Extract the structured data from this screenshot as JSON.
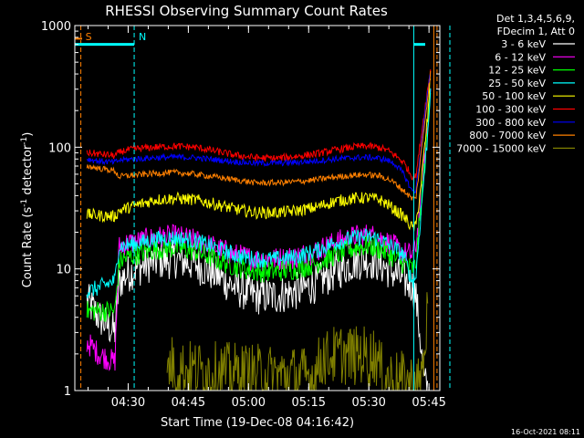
{
  "chart_data": {
    "type": "line",
    "title": "RHESSI Observing Summary Count Rates",
    "xlabel": "Start Time (19-Dec-08 04:16:42)",
    "ylabel_main": "Count Rate (s",
    "ylabel_sup1": "-1",
    "ylabel_mid": " detector",
    "ylabel_sup2": "-1",
    "ylabel_end": ")",
    "y_scale": "log",
    "ylim": [
      1,
      1000
    ],
    "xlim_minutes": [
      0,
      91
    ],
    "x_ticks": [
      {
        "label": "04:30",
        "min": 13.3
      },
      {
        "label": "04:45",
        "min": 28.3
      },
      {
        "label": "05:00",
        "min": 43.3
      },
      {
        "label": "05:15",
        "min": 58.3
      },
      {
        "label": "05:30",
        "min": 73.3
      },
      {
        "label": "05:45",
        "min": 88.3
      }
    ],
    "y_ticks": [
      {
        "label": "1",
        "value": 1
      },
      {
        "label": "10",
        "value": 10
      },
      {
        "label": "100",
        "value": 100
      },
      {
        "label": "1000",
        "value": 1000
      }
    ],
    "legend_header": [
      "Det 1,3,4,5,6,9,",
      "FDecim 1, Att 0"
    ],
    "legend_placement": "right",
    "series": [
      {
        "name": "3 - 6 keV",
        "color": "#ffffff",
        "points": [
          [
            3,
            5.5
          ],
          [
            6,
            4
          ],
          [
            10,
            3
          ],
          [
            11,
            7.5
          ],
          [
            12,
            8.5
          ],
          [
            15,
            10
          ],
          [
            20,
            11.5
          ],
          [
            25,
            12
          ],
          [
            30,
            11
          ],
          [
            35,
            9
          ],
          [
            40,
            7
          ],
          [
            45,
            6
          ],
          [
            50,
            6
          ],
          [
            55,
            6.5
          ],
          [
            60,
            7.5
          ],
          [
            65,
            9.5
          ],
          [
            70,
            11.5
          ],
          [
            73,
            12
          ],
          [
            76,
            11
          ],
          [
            78,
            10
          ],
          [
            80,
            9
          ],
          [
            82,
            8
          ],
          [
            84,
            7.5
          ],
          [
            85,
            6
          ],
          [
            86,
            3
          ],
          [
            87,
            1.2
          ],
          [
            88,
            1
          ]
        ]
      },
      {
        "name": "6 - 12 keV",
        "color": "#ff00ff",
        "points": [
          [
            3,
            2.5
          ],
          [
            6,
            2
          ],
          [
            10,
            1.7
          ],
          [
            11,
            15
          ],
          [
            12,
            16
          ],
          [
            15,
            16.5
          ],
          [
            20,
            18
          ],
          [
            25,
            18.5
          ],
          [
            30,
            17
          ],
          [
            35,
            15
          ],
          [
            40,
            13
          ],
          [
            45,
            12
          ],
          [
            50,
            12
          ],
          [
            55,
            12.5
          ],
          [
            60,
            14
          ],
          [
            65,
            16.5
          ],
          [
            70,
            18.5
          ],
          [
            73,
            19
          ],
          [
            76,
            18
          ],
          [
            78,
            16.5
          ],
          [
            80,
            15
          ],
          [
            82,
            13.5
          ],
          [
            84,
            13
          ],
          [
            85,
            15
          ],
          [
            86,
            30
          ],
          [
            87,
            70
          ],
          [
            88,
            160
          ],
          [
            88.7,
            380
          ]
        ]
      },
      {
        "name": "12 - 25 keV",
        "color": "#00ff00",
        "points": [
          [
            3,
            4.5
          ],
          [
            6,
            4.5
          ],
          [
            10,
            4.5
          ],
          [
            11,
            11
          ],
          [
            12,
            12
          ],
          [
            15,
            13
          ],
          [
            20,
            14.5
          ],
          [
            25,
            15
          ],
          [
            30,
            14
          ],
          [
            35,
            12
          ],
          [
            40,
            10.5
          ],
          [
            45,
            9.5
          ],
          [
            50,
            9.5
          ],
          [
            55,
            10
          ],
          [
            60,
            11
          ],
          [
            65,
            13
          ],
          [
            70,
            15
          ],
          [
            73,
            15.5
          ],
          [
            76,
            14.5
          ],
          [
            78,
            13.5
          ],
          [
            80,
            12
          ],
          [
            82,
            11
          ],
          [
            84,
            10
          ],
          [
            85,
            10.5
          ],
          [
            86,
            25
          ],
          [
            87,
            60
          ],
          [
            88,
            140
          ],
          [
            88.7,
            350
          ]
        ]
      },
      {
        "name": "25 - 50 keV",
        "color": "#00ffff",
        "points": [
          [
            3,
            6.5
          ],
          [
            6,
            7
          ],
          [
            10,
            8
          ],
          [
            11,
            15.5
          ],
          [
            12,
            15.5
          ],
          [
            15,
            16
          ],
          [
            20,
            17.5
          ],
          [
            25,
            18
          ],
          [
            30,
            17
          ],
          [
            35,
            15
          ],
          [
            40,
            13
          ],
          [
            45,
            12
          ],
          [
            50,
            12
          ],
          [
            55,
            12.5
          ],
          [
            60,
            14
          ],
          [
            65,
            16.5
          ],
          [
            70,
            18
          ],
          [
            73,
            18.5
          ],
          [
            76,
            17.5
          ],
          [
            78,
            16
          ],
          [
            80,
            14.5
          ],
          [
            82,
            13
          ],
          [
            84,
            8
          ],
          [
            85,
            8.5
          ],
          [
            86,
            22
          ],
          [
            87,
            55
          ],
          [
            88,
            130
          ],
          [
            88.7,
            330
          ]
        ]
      },
      {
        "name": "50 - 100 keV",
        "color": "#ffff00",
        "points": [
          [
            3,
            28
          ],
          [
            6,
            27.5
          ],
          [
            10,
            27
          ],
          [
            11,
            30
          ],
          [
            12,
            31
          ],
          [
            15,
            33
          ],
          [
            20,
            37
          ],
          [
            25,
            38
          ],
          [
            30,
            37
          ],
          [
            35,
            34
          ],
          [
            40,
            31
          ],
          [
            45,
            29
          ],
          [
            50,
            29
          ],
          [
            55,
            30
          ],
          [
            60,
            32
          ],
          [
            65,
            36
          ],
          [
            70,
            38
          ],
          [
            73,
            38.5
          ],
          [
            76,
            37
          ],
          [
            78,
            34
          ],
          [
            80,
            30
          ],
          [
            82,
            27
          ],
          [
            84,
            22
          ],
          [
            85,
            22
          ],
          [
            86,
            40
          ],
          [
            87,
            85
          ],
          [
            88,
            180
          ],
          [
            88.7,
            400
          ]
        ]
      },
      {
        "name": "100 - 300 keV",
        "color": "#ff0000",
        "points": [
          [
            3,
            90
          ],
          [
            6,
            88
          ],
          [
            10,
            85
          ],
          [
            11,
            90
          ],
          [
            12,
            93
          ],
          [
            15,
            97
          ],
          [
            20,
            100
          ],
          [
            25,
            102
          ],
          [
            30,
            100
          ],
          [
            35,
            93
          ],
          [
            40,
            86
          ],
          [
            45,
            82
          ],
          [
            50,
            81
          ],
          [
            55,
            84
          ],
          [
            60,
            88
          ],
          [
            65,
            95
          ],
          [
            70,
            101
          ],
          [
            73,
            102
          ],
          [
            76,
            99
          ],
          [
            78,
            94
          ],
          [
            80,
            85
          ],
          [
            82,
            75
          ],
          [
            84,
            58
          ],
          [
            85,
            57
          ],
          [
            86,
            100
          ],
          [
            87,
            180
          ],
          [
            88,
            300
          ],
          [
            88.7,
            440
          ]
        ]
      },
      {
        "name": "300 - 800 keV",
        "color": "#0000ff",
        "points": [
          [
            3,
            80
          ],
          [
            6,
            77
          ],
          [
            10,
            75
          ],
          [
            11,
            78
          ],
          [
            12,
            79
          ],
          [
            15,
            80
          ],
          [
            20,
            82
          ],
          [
            25,
            83
          ],
          [
            30,
            82
          ],
          [
            35,
            79
          ],
          [
            40,
            76
          ],
          [
            45,
            74
          ],
          [
            50,
            74
          ],
          [
            55,
            75
          ],
          [
            60,
            77
          ],
          [
            65,
            80
          ],
          [
            70,
            82
          ],
          [
            73,
            82.5
          ],
          [
            76,
            81
          ],
          [
            78,
            78
          ],
          [
            80,
            72
          ],
          [
            82,
            60
          ],
          [
            84,
            44
          ],
          [
            85,
            44
          ],
          [
            86,
            80
          ],
          [
            87,
            160
          ],
          [
            88,
            280
          ],
          [
            88.7,
            420
          ]
        ]
      },
      {
        "name": "800 - 7000 keV",
        "color": "#ff8000",
        "points": [
          [
            3,
            70
          ],
          [
            6,
            67
          ],
          [
            10,
            64
          ],
          [
            11,
            57
          ],
          [
            12,
            58
          ],
          [
            15,
            59
          ],
          [
            20,
            61
          ],
          [
            25,
            62
          ],
          [
            30,
            60
          ],
          [
            35,
            57
          ],
          [
            40,
            54
          ],
          [
            45,
            51
          ],
          [
            50,
            51
          ],
          [
            55,
            52
          ],
          [
            60,
            54
          ],
          [
            65,
            57
          ],
          [
            70,
            59
          ],
          [
            73,
            59.5
          ],
          [
            76,
            58
          ],
          [
            78,
            55
          ],
          [
            80,
            50
          ],
          [
            82,
            44
          ],
          [
            84,
            38
          ],
          [
            85,
            38
          ],
          [
            86,
            70
          ],
          [
            87,
            140
          ],
          [
            88,
            260
          ],
          [
            88.7,
            410
          ]
        ]
      },
      {
        "name": "7000 - 15000 keV",
        "color": "#808000",
        "points": [
          [
            23,
            1.4
          ],
          [
            24,
            1.7
          ],
          [
            25,
            1.5
          ],
          [
            59.5,
            1.3
          ],
          [
            60.5,
            1.5
          ],
          [
            62,
            2
          ],
          [
            63,
            1.8
          ],
          [
            64,
            2
          ],
          [
            65,
            1.9
          ],
          [
            66,
            2
          ],
          [
            67,
            2
          ],
          [
            68,
            1.9
          ],
          [
            69,
            2
          ],
          [
            70,
            1.9
          ],
          [
            71,
            2
          ],
          [
            72,
            2
          ],
          [
            73,
            1.8
          ],
          [
            74,
            1.9
          ],
          [
            75,
            2
          ],
          [
            76,
            1.5
          ],
          [
            77,
            1.3
          ],
          [
            86,
            1.1
          ],
          [
            87,
            1.8
          ],
          [
            88,
            5
          ]
        ]
      }
    ],
    "markers": [
      {
        "label": "S",
        "color": "#ff8000",
        "min": 1.5,
        "style": "dashed"
      },
      {
        "label": "N",
        "color": "#00ffff",
        "min": 14.8,
        "style": "dashed"
      },
      {
        "label": "",
        "color": "#00ffff",
        "min": 84.5,
        "style": "solid"
      },
      {
        "label": "",
        "color": "#ff8000",
        "min": 89.5,
        "style": "solid"
      },
      {
        "label": "",
        "color": "#ff8000",
        "min": 90.3,
        "style": "dashed"
      },
      {
        "label": "",
        "color": "#00ffff",
        "min": 93.5,
        "style": "dashed"
      }
    ],
    "timestamp": "16-Oct-2021 08:11"
  }
}
